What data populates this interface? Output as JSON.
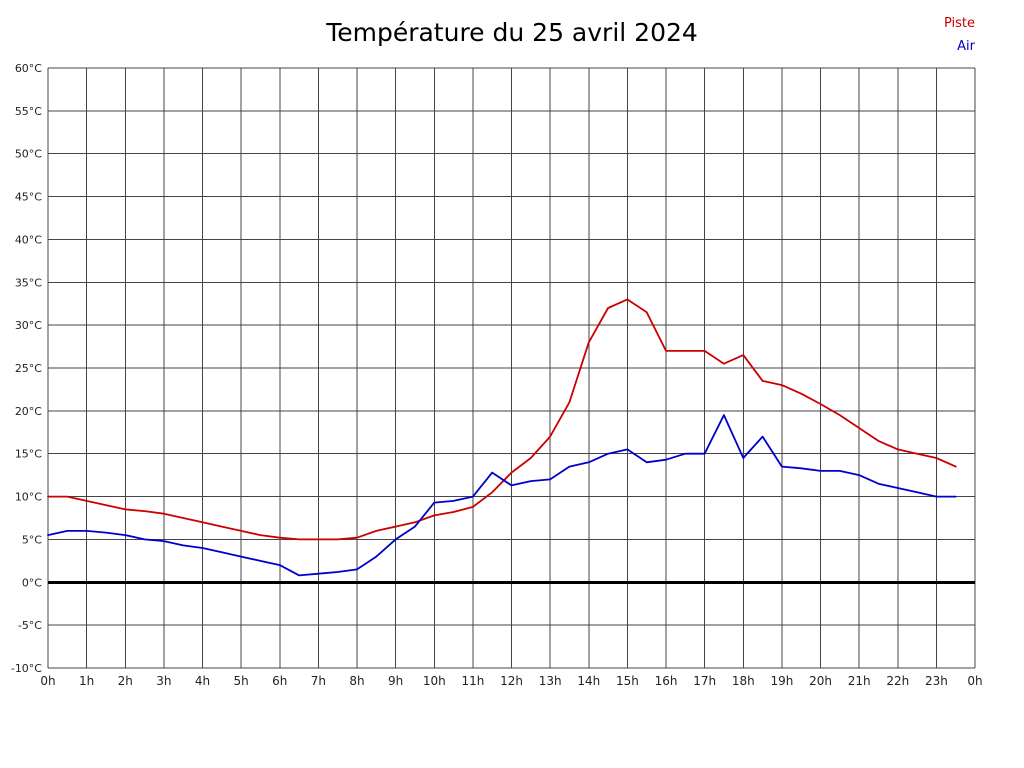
{
  "chart_data": {
    "type": "line",
    "title": "Température du 25 avril 2024",
    "xlabel": "",
    "ylabel": "",
    "xlim": [
      0,
      24
    ],
    "ylim": [
      -10,
      60
    ],
    "grid": true,
    "legend_position": "top-right",
    "baseline_value": 0,
    "x_ticks": {
      "values": [
        0,
        1,
        2,
        3,
        4,
        5,
        6,
        7,
        8,
        9,
        10,
        11,
        12,
        13,
        14,
        15,
        16,
        17,
        18,
        19,
        20,
        21,
        22,
        23,
        24
      ],
      "labels": [
        "0h",
        "1h",
        "2h",
        "3h",
        "4h",
        "5h",
        "6h",
        "7h",
        "8h",
        "9h",
        "10h",
        "11h",
        "12h",
        "13h",
        "14h",
        "15h",
        "16h",
        "17h",
        "18h",
        "19h",
        "20h",
        "21h",
        "22h",
        "23h",
        "0h"
      ]
    },
    "y_ticks": {
      "values": [
        60,
        55,
        50,
        45,
        40,
        35,
        30,
        25,
        20,
        15,
        10,
        5,
        0,
        -5,
        -10
      ],
      "labels": [
        "60°C",
        "55°C",
        "50°C",
        "45°C",
        "40°C",
        "35°C",
        "30°C",
        "25°C",
        "20°C",
        "15°C",
        "10°C",
        "5°C",
        "0°C",
        "-5°C",
        "-10°C"
      ]
    },
    "x": [
      0,
      0.5,
      1,
      1.5,
      2,
      2.5,
      3,
      3.5,
      4,
      4.5,
      5,
      5.5,
      6,
      6.5,
      7,
      7.5,
      8,
      8.5,
      9,
      9.5,
      10,
      10.5,
      11,
      11.5,
      12,
      12.5,
      13,
      13.5,
      14,
      14.5,
      15,
      15.5,
      16,
      16.5,
      17,
      17.5,
      18,
      18.5,
      19,
      19.5,
      20,
      20.5,
      21,
      21.5,
      22,
      22.5,
      23,
      23.5
    ],
    "series": [
      {
        "name": "Piste",
        "color": "#cc0000",
        "values": [
          10,
          10,
          9.5,
          9,
          8.5,
          8.3,
          8,
          7.5,
          7,
          6.5,
          6,
          5.5,
          5.2,
          5,
          5,
          5,
          5.2,
          6,
          6.5,
          7,
          7.8,
          8.2,
          8.8,
          10.5,
          12.8,
          14.5,
          17,
          21,
          28,
          32,
          33,
          31.5,
          27,
          27,
          27,
          25.5,
          26.5,
          23.5,
          23,
          22,
          20.8,
          19.5,
          18,
          16.5,
          15.5,
          15,
          14.5,
          13.5
        ]
      },
      {
        "name": "Air",
        "color": "#0000cc",
        "values": [
          5.5,
          6,
          6,
          5.8,
          5.5,
          5,
          4.8,
          4.3,
          4,
          3.5,
          3,
          2.5,
          2,
          0.8,
          1,
          1.2,
          1.5,
          3,
          5,
          6.5,
          9.3,
          9.5,
          10,
          12.8,
          11.3,
          11.8,
          12,
          13.5,
          14,
          15,
          15.5,
          14,
          14.3,
          15,
          15,
          19.5,
          14.5,
          17,
          13.5,
          13.3,
          13,
          13,
          12.5,
          11.5,
          11,
          10.5,
          10,
          10
        ]
      }
    ]
  },
  "colors": {
    "grid": "#444444",
    "axis_text": "#222222",
    "baseline": "#000000",
    "background": "#ffffff"
  }
}
